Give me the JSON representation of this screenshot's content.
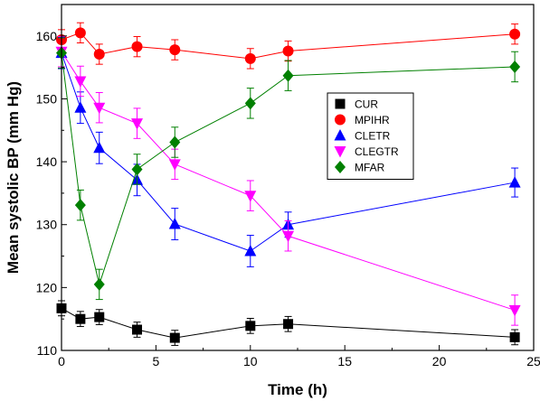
{
  "chart_data": {
    "type": "line",
    "title": "",
    "xlabel": "Time (h)",
    "ylabel": "Mean systolic BP (mm Hg)",
    "xlim": [
      0,
      25
    ],
    "ylim": [
      110,
      165
    ],
    "xticks": [
      0,
      5,
      10,
      15,
      20,
      25
    ],
    "yticks": [
      110,
      120,
      130,
      140,
      150,
      160
    ],
    "grid": false,
    "legend_position": "center-right",
    "series": [
      {
        "name": "CUR",
        "color": "#000000",
        "marker": "square",
        "x": [
          0,
          1,
          2,
          4,
          6,
          10,
          12,
          24
        ],
        "y": [
          116.7,
          115.0,
          115.3,
          113.3,
          112.0,
          113.9,
          114.2,
          112.1
        ],
        "err": [
          1.2,
          1.2,
          1.2,
          1.2,
          1.2,
          1.2,
          1.2,
          1.2
        ]
      },
      {
        "name": "MPIHR",
        "color": "#ff0000",
        "marker": "circle",
        "x": [
          0,
          1,
          2,
          4,
          6,
          10,
          12,
          24
        ],
        "y": [
          159.4,
          160.5,
          157.1,
          158.3,
          157.8,
          156.4,
          157.6,
          160.3
        ],
        "err": [
          1.6,
          1.6,
          1.6,
          1.6,
          1.6,
          1.6,
          1.6,
          1.6
        ]
      },
      {
        "name": "CLETR",
        "color": "#0000ff",
        "marker": "triangle-up",
        "x": [
          0,
          1,
          2,
          4,
          6,
          10,
          12,
          24
        ],
        "y": [
          157.3,
          148.6,
          142.2,
          137.1,
          130.1,
          125.8,
          130.0,
          136.7
        ],
        "err": [
          2.5,
          2.5,
          2.5,
          2.5,
          2.5,
          2.5,
          2.0,
          2.3
        ]
      },
      {
        "name": "CLEGTR",
        "color": "#ff00ff",
        "marker": "triangle-down",
        "x": [
          0,
          1,
          2,
          4,
          6,
          10,
          12,
          24
        ],
        "y": [
          157.5,
          152.8,
          148.6,
          146.1,
          139.6,
          134.6,
          128.2,
          116.4
        ],
        "err": [
          2.4,
          2.4,
          2.4,
          2.4,
          2.4,
          2.4,
          2.4,
          2.4
        ]
      },
      {
        "name": "MFAR",
        "color": "#008000",
        "marker": "diamond",
        "x": [
          0,
          1,
          2,
          4,
          6,
          10,
          12,
          24
        ],
        "y": [
          157.3,
          133.1,
          120.5,
          138.8,
          143.1,
          149.3,
          153.7,
          155.1
        ],
        "err": [
          2.4,
          2.4,
          2.4,
          2.4,
          2.4,
          2.4,
          2.4,
          2.4
        ]
      }
    ]
  }
}
